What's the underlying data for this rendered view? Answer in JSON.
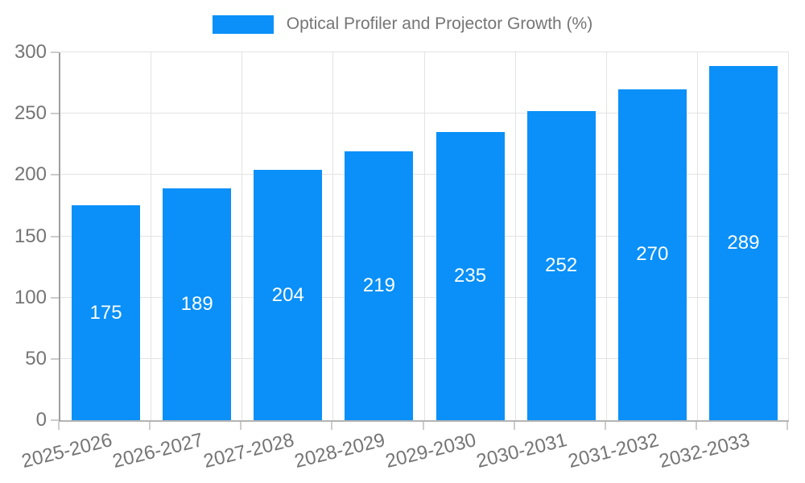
{
  "chart_data": {
    "type": "bar",
    "title": "Optical Profiler and Projector Growth (%)",
    "legend": [
      "Optical Profiler and Projector Growth (%)"
    ],
    "legend_position": "top-center",
    "categories": [
      "2025-2026",
      "2026-2027",
      "2027-2028",
      "2028-2029",
      "2029-2030",
      "2030-2031",
      "2031-2032",
      "2032-2033"
    ],
    "values": [
      175,
      189,
      204,
      219,
      235,
      252,
      270,
      289
    ],
    "xlabel": "",
    "ylabel": "",
    "ylim": [
      0,
      300
    ],
    "yticks": [
      0,
      50,
      100,
      150,
      200,
      250,
      300
    ],
    "grid": "on",
    "bar_color": "#0a90f8",
    "bar_label_color": "#ffffff",
    "axis_text_color": "#757575",
    "grid_color": "#e3e3e3",
    "axis_line_color": "#9e9e9e"
  }
}
